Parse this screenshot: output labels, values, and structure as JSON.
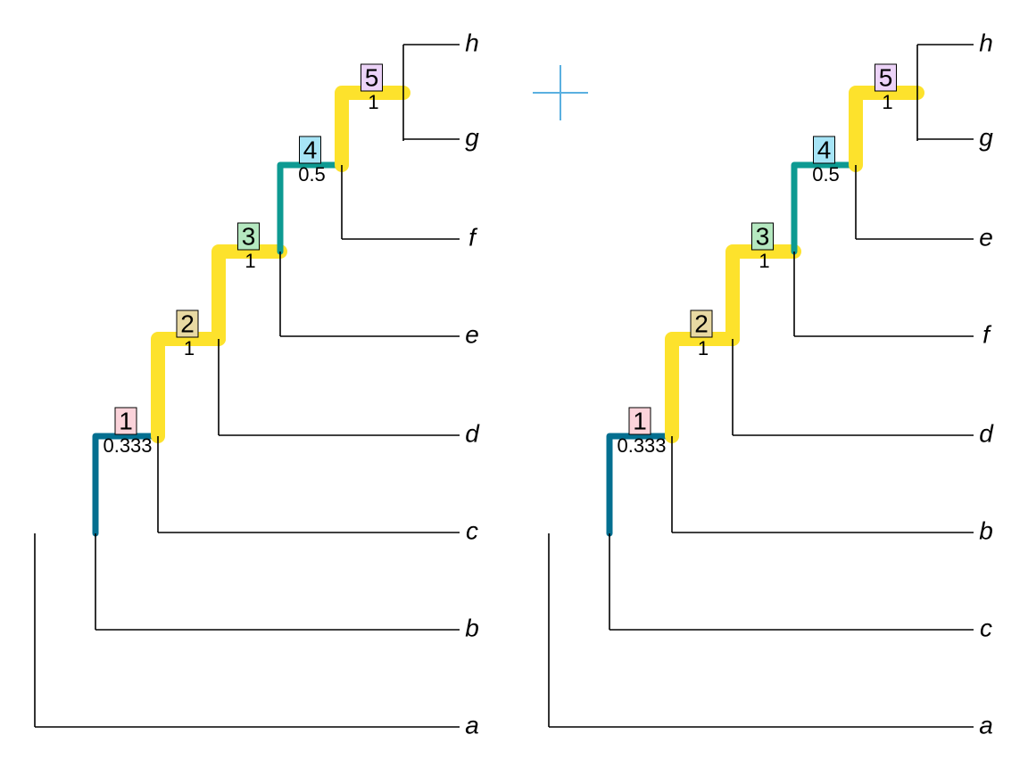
{
  "trees": [
    {
      "tips": [
        "a",
        "b",
        "c",
        "d",
        "e",
        "f",
        "g",
        "h"
      ],
      "nodes": [
        {
          "label": 1,
          "value": 0.333
        },
        {
          "label": 2,
          "value": 1
        },
        {
          "label": 3,
          "value": 1
        },
        {
          "label": 4,
          "value": 0.5
        },
        {
          "label": 5,
          "value": 1
        }
      ]
    },
    {
      "tips": [
        "a",
        "c",
        "b",
        "d",
        "f",
        "e",
        "g",
        "h"
      ],
      "nodes": [
        {
          "label": 1,
          "value": 0.333
        },
        {
          "label": 2,
          "value": 1
        },
        {
          "label": 3,
          "value": 1
        },
        {
          "label": 4,
          "value": 0.5
        },
        {
          "label": 5,
          "value": 1
        }
      ]
    }
  ]
}
